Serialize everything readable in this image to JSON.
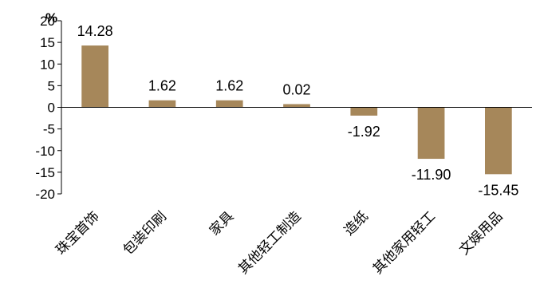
{
  "chart_data": {
    "type": "bar",
    "unit_label": "%",
    "categories": [
      "珠宝首饰",
      "包装印刷",
      "家具",
      "其他轻工制造",
      "造纸",
      "其他家用轻工",
      "文娱用品"
    ],
    "values": [
      14.28,
      1.62,
      1.62,
      0.02,
      -1.92,
      -11.9,
      -15.45
    ],
    "data_labels": [
      "14.28",
      "1.62",
      "1.62",
      "0.02",
      "-1.92",
      "-11.90",
      "-15.45"
    ],
    "y_ticks": [
      "20",
      "15",
      "10",
      "5",
      "0",
      "-5",
      "-10",
      "-15",
      "-20"
    ],
    "ylim": [
      -20,
      20
    ],
    "y_tick_step": 5,
    "title": "",
    "xlabel": "",
    "ylabel": "",
    "grid": false,
    "legend": "none",
    "bar_color": "#A6875A",
    "axis_color": "#000000"
  }
}
